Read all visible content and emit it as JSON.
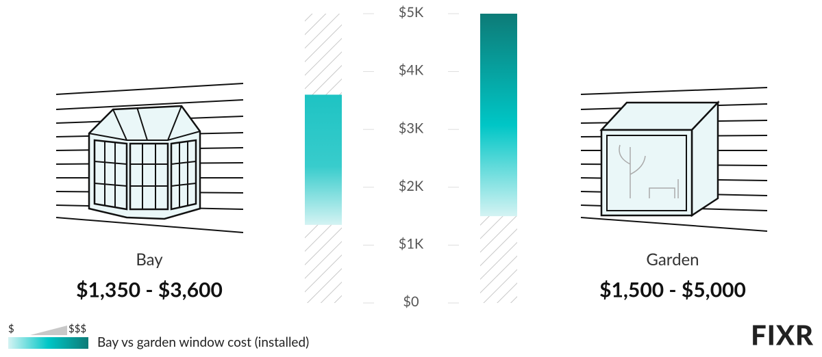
{
  "chart_data": {
    "type": "range-bar",
    "categories": [
      "Bay",
      "Garden"
    ],
    "low": [
      1350,
      1500
    ],
    "high": [
      3600,
      5000
    ],
    "range_labels": [
      "$1,350 - $3,600",
      "$1,500 - $5,000"
    ],
    "ylim": [
      0,
      5000
    ],
    "yticks": [
      {
        "value": 0,
        "label": "$0"
      },
      {
        "value": 1000,
        "label": "$1K"
      },
      {
        "value": 2000,
        "label": "$2K"
      },
      {
        "value": 3000,
        "label": "$3K"
      },
      {
        "value": 4000,
        "label": "$4K"
      },
      {
        "value": 5000,
        "label": "$5K"
      }
    ],
    "colors": [
      "#17c3c3",
      "#0c7c78"
    ],
    "legend": {
      "low_label": "$",
      "high_label": "$$$",
      "text": "Bay vs garden window cost (installed)"
    },
    "brand": "FIXR"
  }
}
